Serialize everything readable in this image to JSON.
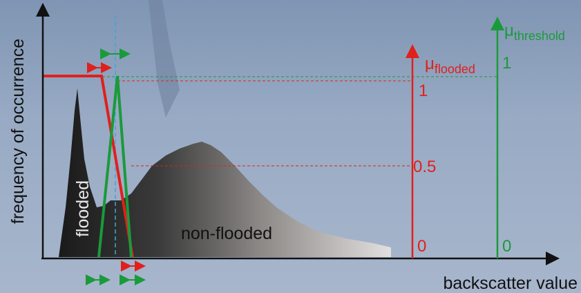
{
  "y_axis_label": "frequency of occurrence",
  "x_axis_label": "backscatter value",
  "regions": [
    {
      "label": "flooded"
    },
    {
      "label": "non-flooded"
    }
  ],
  "membership_axes": [
    {
      "symbol": "μ",
      "subscript": "flooded",
      "ticks": [
        1,
        0.5,
        0
      ]
    },
    {
      "symbol": "μ",
      "subscript": "threshold",
      "ticks": [
        1,
        0
      ]
    }
  ]
}
